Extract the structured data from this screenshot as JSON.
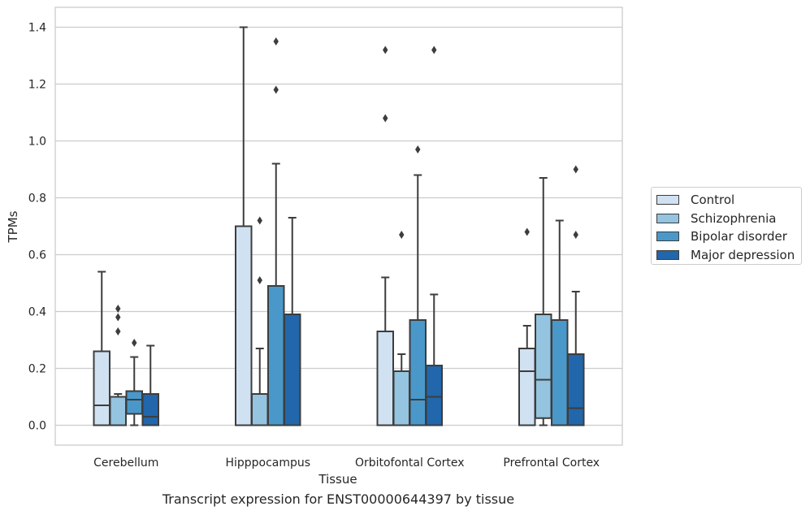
{
  "chart_data": {
    "type": "box",
    "title": "",
    "caption": "Transcript expression for ENST00000644397 by tissue",
    "xlabel": "Tissue",
    "ylabel": "TPMs",
    "ylim": [
      -0.07,
      1.47
    ],
    "yticks": [
      0.0,
      0.2,
      0.4,
      0.6,
      0.8,
      1.0,
      1.2,
      1.4
    ],
    "grid": "horizontal",
    "legend_position": "right",
    "categories": [
      "Cerebellum",
      "Hipppocampus",
      "Orbitofontal Cortex",
      "Prefrontal Cortex"
    ],
    "series": [
      {
        "name": "Control",
        "color": "#d0e1f2",
        "boxes": [
          {
            "whislo": 0.0,
            "q1": 0.0,
            "med": 0.07,
            "q3": 0.26,
            "whishi": 0.54,
            "fliers": []
          },
          {
            "whislo": 0.0,
            "q1": 0.0,
            "med": 0.0,
            "q3": 0.7,
            "whishi": 1.4,
            "fliers": []
          },
          {
            "whislo": 0.0,
            "q1": 0.0,
            "med": 0.0,
            "q3": 0.33,
            "whishi": 0.52,
            "fliers": [
              1.08,
              1.32
            ]
          },
          {
            "whislo": 0.0,
            "q1": 0.0,
            "med": 0.19,
            "q3": 0.27,
            "whishi": 0.35,
            "fliers": [
              0.68
            ]
          }
        ]
      },
      {
        "name": "Schizophrenia",
        "color": "#94c4df",
        "boxes": [
          {
            "whislo": 0.0,
            "q1": 0.0,
            "med": 0.0,
            "q3": 0.1,
            "whishi": 0.11,
            "fliers": [
              0.33,
              0.38,
              0.41
            ]
          },
          {
            "whislo": 0.0,
            "q1": 0.0,
            "med": 0.0,
            "q3": 0.11,
            "whishi": 0.27,
            "fliers": [
              0.51,
              0.72
            ]
          },
          {
            "whislo": 0.0,
            "q1": 0.0,
            "med": 0.0,
            "q3": 0.19,
            "whishi": 0.25,
            "fliers": [
              0.67
            ]
          },
          {
            "whislo": 0.0,
            "q1": 0.025,
            "med": 0.16,
            "q3": 0.39,
            "whishi": 0.87,
            "fliers": []
          }
        ]
      },
      {
        "name": "Bipolar disorder",
        "color": "#4a98c9",
        "boxes": [
          {
            "whislo": 0.0,
            "q1": 0.04,
            "med": 0.09,
            "q3": 0.12,
            "whishi": 0.24,
            "fliers": [
              0.29
            ]
          },
          {
            "whislo": 0.0,
            "q1": 0.0,
            "med": 0.0,
            "q3": 0.49,
            "whishi": 0.92,
            "fliers": [
              1.18,
              1.35
            ]
          },
          {
            "whislo": 0.0,
            "q1": 0.0,
            "med": 0.09,
            "q3": 0.37,
            "whishi": 0.88,
            "fliers": [
              0.97
            ]
          },
          {
            "whislo": 0.0,
            "q1": 0.0,
            "med": 0.0,
            "q3": 0.37,
            "whishi": 0.72,
            "fliers": []
          }
        ]
      },
      {
        "name": "Major depression",
        "color": "#2266ab",
        "boxes": [
          {
            "whislo": 0.0,
            "q1": 0.0,
            "med": 0.03,
            "q3": 0.11,
            "whishi": 0.28,
            "fliers": []
          },
          {
            "whislo": 0.0,
            "q1": 0.0,
            "med": 0.0,
            "q3": 0.39,
            "whishi": 0.73,
            "fliers": []
          },
          {
            "whislo": 0.0,
            "q1": 0.0,
            "med": 0.1,
            "q3": 0.21,
            "whishi": 0.46,
            "fliers": [
              1.32
            ]
          },
          {
            "whislo": 0.0,
            "q1": 0.0,
            "med": 0.06,
            "q3": 0.25,
            "whishi": 0.47,
            "fliers": [
              0.67,
              0.9
            ]
          }
        ]
      }
    ]
  }
}
